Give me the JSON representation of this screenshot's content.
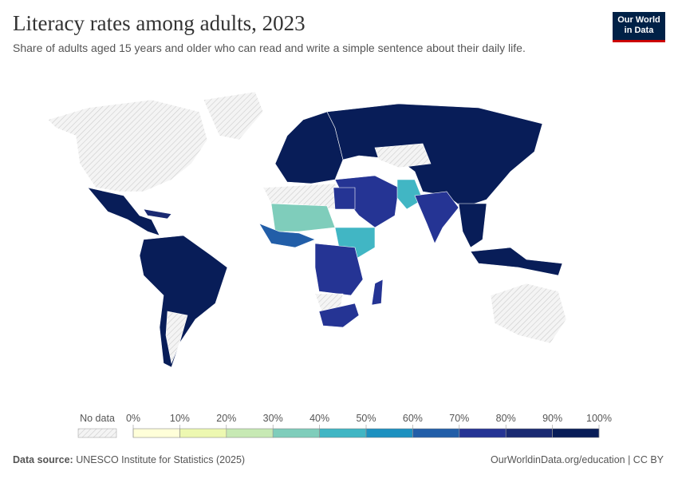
{
  "header": {
    "title": "Literacy rates among adults, 2023",
    "subtitle": "Share of adults aged 15 years and older who can read and write a simple sentence about their daily life.",
    "logo": [
      "Our World",
      "in Data"
    ]
  },
  "legend": {
    "no_data": "No data",
    "ticks": [
      {
        "value": 0,
        "label": "0%"
      },
      {
        "value": 10,
        "label": "10%"
      },
      {
        "value": 20,
        "label": "20%"
      },
      {
        "value": 30,
        "label": "30%"
      },
      {
        "value": 40,
        "label": "40%"
      },
      {
        "value": 50,
        "label": "50%"
      },
      {
        "value": 60,
        "label": "60%"
      },
      {
        "value": 70,
        "label": "70%"
      },
      {
        "value": 80,
        "label": "80%"
      },
      {
        "value": 90,
        "label": "90%"
      },
      {
        "value": 100,
        "label": "100%"
      }
    ],
    "colors": [
      "#ffffd9",
      "#edf8b1",
      "#c7e9b4",
      "#7fcdbb",
      "#41b6c4",
      "#1d91c0",
      "#225ea8",
      "#253494",
      "#1a2a72",
      "#081d58"
    ]
  },
  "footer": {
    "source_label": "Data source:",
    "source": "UNESCO Institute for Statistics (2025)",
    "link": "OurWorldinData.org/education | CC BY"
  }
}
